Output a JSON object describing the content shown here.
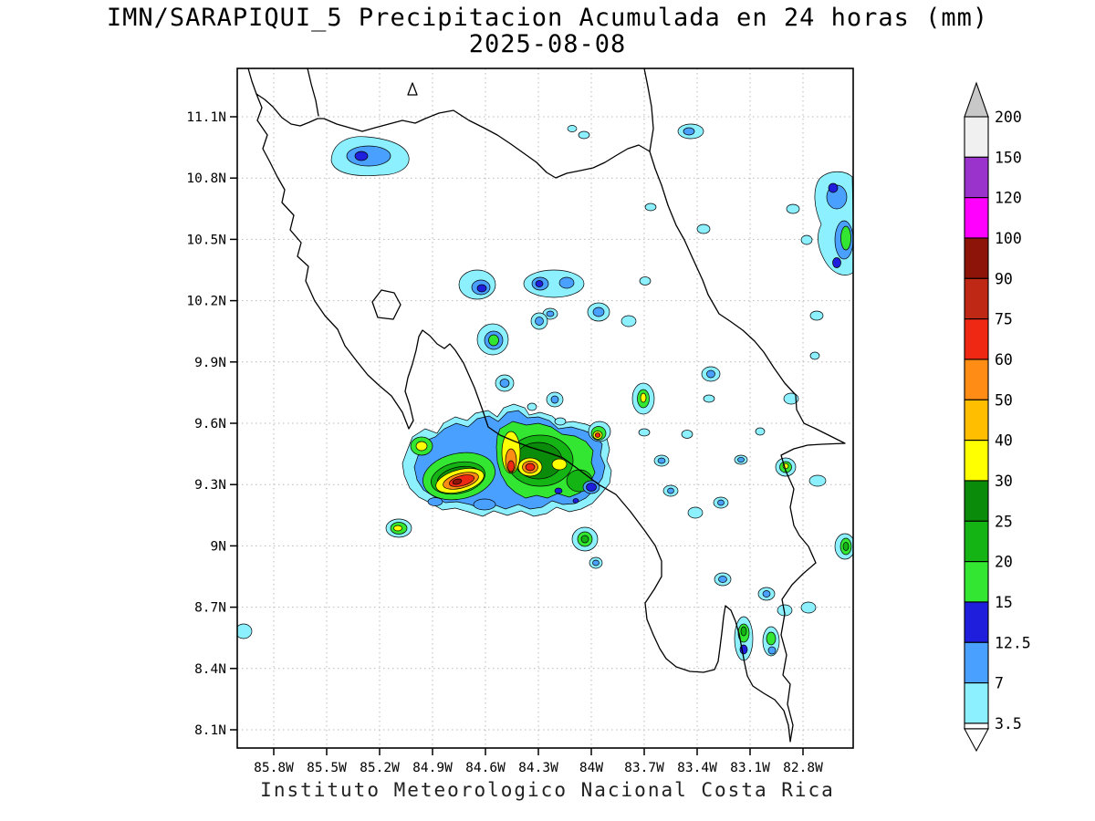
{
  "title": {
    "line1": "IMN/SARAPIQUI_5 Precipitacion Acumulada en 24 horas (mm)",
    "line2": "2025-08-08"
  },
  "footer": {
    "text": "Instituto Meteorologico Nacional Costa Rica"
  },
  "map": {
    "lat_ticks": [
      "11.1N",
      "10.8N",
      "10.5N",
      "10.2N",
      "9.9N",
      "9.6N",
      "9.3N",
      "9N",
      "8.7N",
      "8.4N",
      "8.1N"
    ],
    "lon_ticks": [
      "85.8W",
      "85.5W",
      "85.2W",
      "84.9W",
      "84.6W",
      "84.3W",
      "84W",
      "83.7W",
      "83.4W",
      "83.1W",
      "82.8W"
    ]
  },
  "colorbar": {
    "labels_top_to_bottom": [
      "200",
      "150",
      "120",
      "100",
      "90",
      "75",
      "60",
      "50",
      "40",
      "30",
      "25",
      "20",
      "15",
      "12.5",
      "7",
      "3.5"
    ],
    "interval_colors_top_to_bottom": [
      "#f0f0f0",
      "#9933cc",
      "#ff00ff",
      "#8c1408",
      "#bf2814",
      "#ef2814",
      "#ff8c14",
      "#ffbe00",
      "#ffff00",
      "#0a8c0a",
      "#14b414",
      "#32e632",
      "#1e1edc",
      "#4aa0ff",
      "#8cf0ff"
    ],
    "below_min_color": "#ffffff",
    "above_max_color": "#c8c8c8"
  },
  "chart_data": {
    "type": "heatmap",
    "subtype": "filled-contour precipitation map",
    "title": "IMN/SARAPIQUI_5 Precipitacion Acumulada en 24 horas (mm)",
    "date": "2025-08-08",
    "units": "mm",
    "region": "Costa Rica",
    "lat_range": [
      "8.1N",
      "11.1N"
    ],
    "lon_range": [
      "85.8W",
      "82.8W"
    ],
    "levels_mm": [
      3.5,
      7,
      12.5,
      15,
      20,
      25,
      30,
      40,
      50,
      60,
      75,
      90,
      100,
      120,
      150,
      200
    ],
    "legend_position": "right",
    "grid": "dashed",
    "notable_maxima": [
      {
        "approx_lat": "9.3N",
        "approx_lon": "84.75W",
        "peak_range_mm": "75-90"
      },
      {
        "approx_lat": "9.35N",
        "approx_lon": "84.4W",
        "peak_range_mm": "60-75"
      },
      {
        "approx_lat": "9.4N",
        "approx_lon": "84.5W",
        "peak_range_mm": "60-75"
      },
      {
        "approx_lat": "9.5N",
        "approx_lon": "84.05W",
        "peak_range_mm": "60-75"
      },
      {
        "approx_lat": "10.45N",
        "approx_lon": "82.85W",
        "peak_range_mm": "20-25"
      },
      {
        "approx_lat": "9.65N",
        "approx_lon": "83.75W",
        "peak_range_mm": "30-40"
      },
      {
        "approx_lat": "10.85N",
        "approx_lon": "85.25W",
        "peak_range_mm": "12.5-15"
      }
    ]
  }
}
